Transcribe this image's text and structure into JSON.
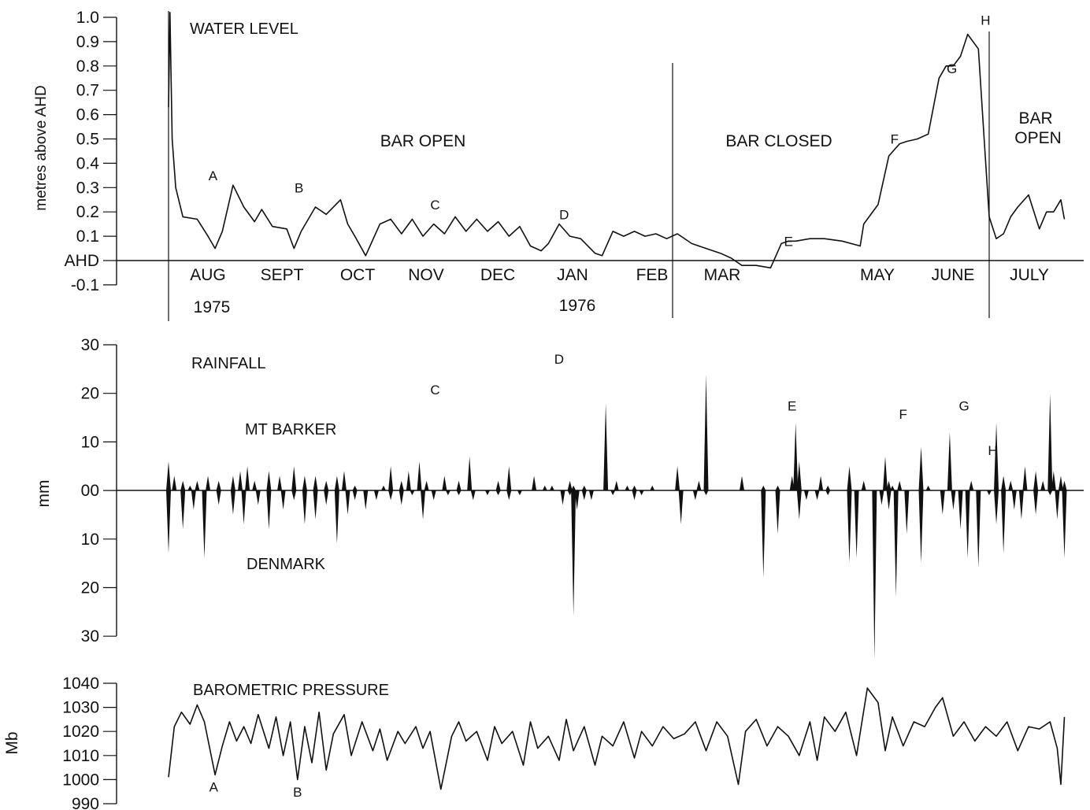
{
  "chart_data": [
    {
      "type": "line",
      "title": "WATER LEVEL",
      "ylabel": "metres above AHD",
      "ylim": [
        -0.1,
        1.0
      ],
      "y_ticks": [
        "1.0",
        "0.9",
        "0.8",
        "0.7",
        "0.6",
        "0.5",
        "0.4",
        "0.3",
        "0.2",
        "0.1",
        "AHD",
        "-0.1"
      ],
      "x_tick_labels": [
        "AUG",
        "SEPT",
        "OCT",
        "NOV",
        "DEC",
        "JAN",
        "FEB",
        "MAR",
        "MAY",
        "JUNE",
        "JULY"
      ],
      "year_labels": [
        "1975",
        "1976"
      ],
      "phase_labels": [
        "BAR OPEN",
        "BAR CLOSED",
        "BAR OPEN"
      ],
      "event_labels": [
        "A",
        "B",
        "C",
        "D",
        "E",
        "F",
        "G",
        "H"
      ],
      "x_range_months": [
        0,
        12.5
      ],
      "bar_closed_at_month": 7.0,
      "bar_opened_at_month": 11.5,
      "series": [
        {
          "x": [
            0.0,
            0.02,
            0.05,
            0.1,
            0.2,
            0.4,
            0.55,
            0.65,
            0.75,
            0.9,
            1.05,
            1.2,
            1.3,
            1.45,
            1.65,
            1.75,
            1.85,
            2.05,
            2.2,
            2.4,
            2.5,
            2.6,
            2.75,
            2.95,
            3.1,
            3.25,
            3.4,
            3.55,
            3.7,
            3.85,
            4.0,
            4.15,
            4.3,
            4.45,
            4.6,
            4.75,
            4.9,
            5.05,
            5.2,
            5.3,
            5.45,
            5.6,
            5.75,
            5.95,
            6.05,
            6.2,
            6.35,
            6.5,
            6.65,
            6.8,
            6.95,
            7.1,
            7.3,
            7.5,
            7.7,
            7.85,
            8.0,
            8.2,
            8.4,
            8.55,
            8.65,
            8.75,
            8.95,
            9.15,
            9.4,
            9.65,
            9.7,
            9.9,
            10.05,
            10.2,
            10.3,
            10.45,
            10.6,
            10.75,
            10.85,
            10.95,
            11.05,
            11.15,
            11.3,
            11.38,
            11.45,
            11.55,
            11.65,
            11.75,
            11.85,
            12.0,
            12.15,
            12.25,
            12.35,
            12.45,
            12.5
          ],
          "y": [
            0.63,
            1.02,
            0.5,
            0.3,
            0.18,
            0.17,
            0.1,
            0.05,
            0.12,
            0.31,
            0.22,
            0.16,
            0.21,
            0.14,
            0.13,
            0.05,
            0.12,
            0.22,
            0.19,
            0.25,
            0.15,
            0.1,
            0.02,
            0.15,
            0.17,
            0.11,
            0.17,
            0.1,
            0.15,
            0.11,
            0.18,
            0.12,
            0.17,
            0.12,
            0.16,
            0.1,
            0.14,
            0.06,
            0.04,
            0.07,
            0.15,
            0.1,
            0.09,
            0.03,
            0.02,
            0.12,
            0.1,
            0.12,
            0.1,
            0.11,
            0.09,
            0.11,
            0.07,
            0.05,
            0.03,
            0.01,
            -0.02,
            -0.02,
            -0.03,
            0.07,
            0.08,
            0.08,
            0.09,
            0.09,
            0.08,
            0.06,
            0.15,
            0.23,
            0.43,
            0.48,
            0.49,
            0.5,
            0.52,
            0.75,
            0.8,
            0.8,
            0.84,
            0.93,
            0.87,
            0.5,
            0.18,
            0.09,
            0.11,
            0.18,
            0.22,
            0.27,
            0.13,
            0.2,
            0.2,
            0.25,
            0.17
          ]
        }
      ]
    },
    {
      "type": "bar",
      "title": "RAINFALL",
      "ylabel": "mm",
      "y_ticks": [
        "30",
        "20",
        "10",
        "00",
        "10",
        "20",
        "30"
      ],
      "event_labels": [
        "C",
        "D",
        "E",
        "F",
        "G",
        "H"
      ],
      "series": [
        {
          "name": "MT BARKER",
          "x": [
            0.0,
            0.08,
            0.2,
            0.3,
            0.4,
            0.55,
            0.7,
            0.9,
            1.0,
            1.1,
            1.2,
            1.4,
            1.55,
            1.75,
            1.9,
            2.05,
            2.2,
            2.35,
            2.45,
            2.6,
            3.0,
            3.1,
            3.25,
            3.35,
            3.5,
            3.6,
            3.85,
            4.05,
            4.2,
            4.6,
            4.75,
            5.1,
            5.25,
            5.35,
            5.6,
            5.65,
            5.8,
            6.1,
            6.25,
            6.4,
            6.5,
            6.75,
            7.1,
            7.4,
            7.5,
            8.0,
            8.3,
            8.5,
            8.7,
            8.75,
            8.8,
            9.1,
            9.2,
            9.5,
            9.7,
            10.0,
            10.05,
            10.1,
            10.2,
            10.5,
            10.6,
            10.9,
            11.2,
            11.55,
            11.65,
            11.75,
            11.95,
            12.1,
            12.2,
            12.3,
            12.35,
            12.45,
            12.5
          ],
          "y": [
            6,
            3,
            2,
            1,
            2,
            3,
            2,
            3,
            4,
            5,
            2,
            4,
            3,
            5,
            3,
            3,
            2,
            3,
            4,
            1,
            1,
            5,
            2,
            4,
            6,
            2,
            3,
            2,
            7,
            2,
            5,
            3,
            1,
            1,
            2,
            1,
            1,
            18,
            2,
            1,
            1,
            1,
            5,
            2,
            24,
            3,
            1,
            1,
            3,
            14,
            6,
            3,
            1,
            5,
            2,
            7,
            2,
            1,
            2,
            9,
            1,
            12,
            2,
            14,
            3,
            2,
            5,
            4,
            2,
            20,
            4,
            3,
            2
          ]
        },
        {
          "name": "DENMARK",
          "x": [
            0.0,
            0.2,
            0.35,
            0.5,
            0.7,
            0.9,
            1.05,
            1.25,
            1.4,
            1.6,
            1.75,
            1.9,
            2.05,
            2.2,
            2.35,
            2.5,
            2.6,
            2.75,
            2.9,
            3.1,
            3.25,
            3.4,
            3.55,
            3.7,
            3.9,
            4.05,
            4.25,
            4.45,
            4.6,
            4.75,
            4.9,
            5.5,
            5.6,
            5.65,
            5.7,
            5.8,
            5.9,
            6.2,
            6.5,
            6.6,
            7.15,
            7.35,
            7.5,
            8.3,
            8.5,
            8.8,
            8.9,
            9.05,
            9.2,
            9.5,
            9.6,
            9.85,
            9.95,
            10.05,
            10.15,
            10.3,
            10.5,
            10.8,
            10.95,
            11.05,
            11.15,
            11.3,
            11.45,
            11.55,
            11.65,
            11.8,
            11.9,
            12.1,
            12.3,
            12.4,
            12.5
          ],
          "y": [
            13,
            8,
            4,
            14,
            3,
            5,
            7,
            3,
            8,
            4,
            2,
            7,
            6,
            3,
            11,
            5,
            2,
            4,
            2,
            2,
            3,
            1,
            6,
            2,
            1,
            1,
            2,
            1,
            1,
            2,
            1,
            3,
            1,
            26,
            4,
            2,
            2,
            1,
            2,
            1,
            7,
            2,
            1,
            18,
            9,
            6,
            2,
            2,
            1,
            15,
            14,
            35,
            3,
            4,
            22,
            9,
            15,
            5,
            4,
            8,
            14,
            16,
            1,
            7,
            13,
            4,
            6,
            5,
            1,
            6,
            14
          ]
        }
      ]
    },
    {
      "type": "line",
      "title": "BAROMETRIC PRESSURE",
      "ylabel": "Mb",
      "ylim": [
        990,
        1040
      ],
      "y_ticks": [
        "1040",
        "1030",
        "1020",
        "1010",
        "1000",
        "990"
      ],
      "event_labels": [
        "A",
        "B"
      ],
      "series": [
        {
          "x": [
            0.0,
            0.08,
            0.18,
            0.3,
            0.4,
            0.5,
            0.65,
            0.75,
            0.85,
            0.95,
            1.05,
            1.15,
            1.25,
            1.4,
            1.5,
            1.6,
            1.7,
            1.8,
            1.9,
            2.0,
            2.1,
            2.2,
            2.3,
            2.45,
            2.55,
            2.7,
            2.85,
            2.95,
            3.05,
            3.2,
            3.3,
            3.45,
            3.55,
            3.65,
            3.8,
            3.95,
            4.05,
            4.15,
            4.3,
            4.45,
            4.55,
            4.65,
            4.8,
            4.95,
            5.05,
            5.15,
            5.3,
            5.45,
            5.55,
            5.65,
            5.8,
            5.95,
            6.05,
            6.2,
            6.35,
            6.5,
            6.6,
            6.75,
            6.9,
            7.05,
            7.2,
            7.35,
            7.5,
            7.65,
            7.8,
            7.95,
            8.05,
            8.2,
            8.35,
            8.5,
            8.65,
            8.8,
            8.95,
            9.05,
            9.15,
            9.3,
            9.45,
            9.6,
            9.75,
            9.9,
            10.0,
            10.1,
            10.25,
            10.4,
            10.55,
            10.7,
            10.8,
            10.95,
            11.1,
            11.25,
            11.4,
            11.55,
            11.7,
            11.85,
            12.0,
            12.15,
            12.3,
            12.4,
            12.45,
            12.5
          ],
          "y": [
            1001,
            1022,
            1028,
            1023,
            1031,
            1024,
            1002,
            1014,
            1024,
            1016,
            1022,
            1015,
            1027,
            1013,
            1026,
            1010,
            1024,
            1000,
            1022,
            1007,
            1028,
            1004,
            1019,
            1027,
            1010,
            1024,
            1012,
            1021,
            1008,
            1020,
            1015,
            1022,
            1013,
            1020,
            996,
            1018,
            1024,
            1016,
            1020,
            1008,
            1022,
            1015,
            1020,
            1006,
            1024,
            1013,
            1018,
            1008,
            1025,
            1012,
            1022,
            1006,
            1018,
            1014,
            1024,
            1009,
            1020,
            1014,
            1022,
            1017,
            1019,
            1024,
            1012,
            1024,
            1018,
            998,
            1020,
            1025,
            1014,
            1022,
            1018,
            1010,
            1024,
            1008,
            1026,
            1020,
            1028,
            1010,
            1038,
            1032,
            1012,
            1026,
            1014,
            1024,
            1022,
            1030,
            1034,
            1018,
            1024,
            1016,
            1022,
            1018,
            1024,
            1012,
            1022,
            1021,
            1024,
            1013,
            998,
            1026
          ]
        }
      ]
    }
  ]
}
